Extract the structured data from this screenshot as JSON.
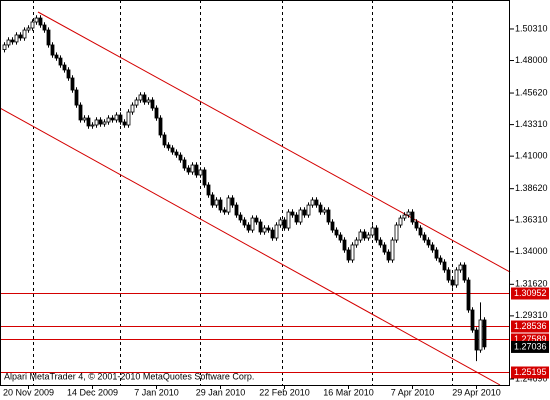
{
  "chart_data": {
    "type": "candlestick",
    "categories": [
      null,
      null,
      null,
      null,
      null,
      null,
      "20 Nov 2009",
      null,
      null,
      null,
      null,
      null,
      null,
      null,
      null,
      null,
      null,
      null,
      null,
      null,
      null,
      null,
      "14 Dec 2009",
      null,
      null,
      null,
      null,
      null,
      null,
      null,
      null,
      null,
      null,
      null,
      null,
      null,
      null,
      null,
      "7 Jan 2010",
      null,
      null,
      null,
      null,
      null,
      null,
      null,
      null,
      null,
      null,
      null,
      null,
      null,
      null,
      null,
      "29 Jan 2010",
      null,
      null,
      null,
      null,
      null,
      null,
      null,
      null,
      null,
      null,
      null,
      null,
      null,
      null,
      null,
      "22 Feb 2010",
      null,
      null,
      null,
      null,
      null,
      null,
      null,
      null,
      null,
      null,
      null,
      null,
      null,
      null,
      null,
      "16 Mar 2010",
      null,
      null,
      null,
      null,
      null,
      null,
      null,
      null,
      null,
      null,
      null,
      null,
      null,
      null,
      null,
      "7 Apr 2010",
      null,
      null,
      null,
      null,
      null,
      null,
      null,
      null,
      null,
      null,
      null,
      null,
      null,
      null,
      null,
      "29 Apr 2010",
      null,
      null
    ],
    "open": [
      1.488,
      1.4914,
      1.495,
      1.4936,
      1.4987,
      1.4965,
      1.5023,
      1.5038,
      1.5082,
      1.5111,
      1.506,
      1.5023,
      1.4914,
      1.484,
      1.4818,
      1.4767,
      1.4731,
      1.4672,
      1.4584,
      1.4474,
      1.4365,
      1.4379,
      1.4321,
      1.4328,
      1.4365,
      1.4335,
      1.435,
      1.4379,
      1.4365,
      1.4401,
      1.435,
      1.4328,
      1.4423,
      1.4474,
      1.4511,
      1.4548,
      1.4496,
      1.4511,
      1.4452,
      1.4379,
      1.4255,
      1.4182,
      1.416,
      1.413,
      1.4108,
      1.4072,
      1.4013,
      1.3984,
      1.4035,
      1.3962,
      1.3999,
      1.3889,
      1.3816,
      1.3742,
      1.3779,
      1.3706,
      1.3691,
      1.3794,
      1.3742,
      1.3669,
      1.3633,
      1.3596,
      1.3559,
      1.3647,
      1.3618,
      1.3545,
      1.3574,
      1.3559,
      1.3501,
      1.3596,
      1.3633,
      1.3574,
      1.3691,
      1.3669,
      1.3618,
      1.3706,
      1.3669,
      1.3742,
      1.3779,
      1.3742,
      1.3691,
      1.3706,
      1.3618,
      1.3559,
      1.3523,
      1.3486,
      1.3413,
      1.334,
      1.345,
      1.3486,
      1.3545,
      1.3501,
      1.3523,
      1.3574,
      1.3486,
      1.345,
      1.3398,
      1.334,
      1.3486,
      1.3596,
      1.3647,
      1.3669,
      1.3691,
      1.3618,
      1.3574,
      1.3523,
      1.3486,
      1.345,
      1.3413,
      1.3354,
      1.3325,
      1.3267,
      1.3193,
      1.3157,
      1.3267,
      1.3303,
      1.3193,
      1.2974,
      1.2827,
      1.2681,
      1.2901
    ],
    "high": [
      1.4934,
      1.497,
      1.497,
      1.5007,
      1.5007,
      1.5043,
      1.5058,
      1.5102,
      1.5131,
      1.5131,
      1.508,
      1.5043,
      1.4934,
      1.486,
      1.4838,
      1.4787,
      1.4751,
      1.4692,
      1.4604,
      1.4494,
      1.4399,
      1.4399,
      1.4348,
      1.4385,
      1.4385,
      1.437,
      1.4399,
      1.4399,
      1.4421,
      1.4421,
      1.437,
      1.4443,
      1.4494,
      1.4531,
      1.4568,
      1.4568,
      1.4531,
      1.4531,
      1.4472,
      1.4399,
      1.4275,
      1.4202,
      1.418,
      1.415,
      1.4128,
      1.4092,
      1.4033,
      1.4055,
      1.4055,
      1.4019,
      1.4019,
      1.3909,
      1.3836,
      1.3799,
      1.3799,
      1.3726,
      1.3814,
      1.3814,
      1.3762,
      1.3689,
      1.3653,
      1.3616,
      1.3667,
      1.3667,
      1.3638,
      1.3594,
      1.3594,
      1.3579,
      1.3616,
      1.3653,
      1.3653,
      1.3711,
      1.3711,
      1.3689,
      1.3726,
      1.3726,
      1.3762,
      1.3799,
      1.3799,
      1.3762,
      1.3726,
      1.3726,
      1.3638,
      1.3579,
      1.3543,
      1.3506,
      1.3433,
      1.347,
      1.3506,
      1.3565,
      1.3565,
      1.3543,
      1.3594,
      1.3594,
      1.3506,
      1.347,
      1.3418,
      1.3506,
      1.3616,
      1.3667,
      1.3689,
      1.3711,
      1.3711,
      1.3638,
      1.3594,
      1.3543,
      1.3506,
      1.347,
      1.3433,
      1.3374,
      1.3345,
      1.3287,
      1.3213,
      1.3287,
      1.3323,
      1.3323,
      1.3213,
      1.2994,
      1.2847,
      1.303,
      1.2921
    ],
    "low": [
      1.486,
      1.4894,
      1.4916,
      1.4916,
      1.4945,
      1.4945,
      1.5003,
      1.5018,
      1.5062,
      1.504,
      1.5003,
      1.4894,
      1.482,
      1.4798,
      1.4747,
      1.4711,
      1.4652,
      1.4564,
      1.4454,
      1.4345,
      1.4345,
      1.4301,
      1.4301,
      1.4308,
      1.4315,
      1.4315,
      1.433,
      1.4345,
      1.4345,
      1.433,
      1.4308,
      1.4308,
      1.4403,
      1.4454,
      1.4491,
      1.4476,
      1.4476,
      1.4432,
      1.4359,
      1.4235,
      1.4162,
      1.414,
      1.411,
      1.4088,
      1.4052,
      1.3993,
      1.3964,
      1.3964,
      1.3942,
      1.3942,
      1.3869,
      1.3796,
      1.3722,
      1.3722,
      1.3686,
      1.3671,
      1.3671,
      1.3722,
      1.3649,
      1.3613,
      1.3576,
      1.3539,
      1.3539,
      1.3598,
      1.3525,
      1.3525,
      1.3539,
      1.3481,
      1.3481,
      1.3576,
      1.3554,
      1.3554,
      1.3649,
      1.3598,
      1.3598,
      1.3649,
      1.3649,
      1.3722,
      1.3722,
      1.3671,
      1.3671,
      1.3598,
      1.3539,
      1.3503,
      1.3466,
      1.3393,
      1.332,
      1.332,
      1.343,
      1.3466,
      1.3481,
      1.3481,
      1.3503,
      1.3466,
      1.343,
      1.3378,
      1.332,
      1.332,
      1.3466,
      1.3576,
      1.3627,
      1.3649,
      1.3598,
      1.3554,
      1.3503,
      1.3466,
      1.343,
      1.3393,
      1.3334,
      1.3305,
      1.3247,
      1.3173,
      1.3137,
      1.3137,
      1.3247,
      1.3173,
      1.2954,
      1.2807,
      1.26,
      1.2661,
      1.2684
    ],
    "close": [
      1.4914,
      1.495,
      1.4936,
      1.4987,
      1.4965,
      1.5023,
      1.5038,
      1.5082,
      1.5111,
      1.506,
      1.5023,
      1.4914,
      1.484,
      1.4818,
      1.4767,
      1.4731,
      1.4672,
      1.4584,
      1.4474,
      1.4365,
      1.4379,
      1.4321,
      1.4328,
      1.4365,
      1.4335,
      1.435,
      1.4379,
      1.4365,
      1.4401,
      1.435,
      1.4328,
      1.4423,
      1.4474,
      1.4511,
      1.4548,
      1.4496,
      1.4511,
      1.4452,
      1.4379,
      1.4255,
      1.4182,
      1.416,
      1.413,
      1.4108,
      1.4072,
      1.4013,
      1.3984,
      1.4035,
      1.3962,
      1.3999,
      1.3889,
      1.3816,
      1.3742,
      1.3779,
      1.3706,
      1.3691,
      1.3794,
      1.3742,
      1.3669,
      1.3633,
      1.3596,
      1.3559,
      1.3647,
      1.3618,
      1.3545,
      1.3574,
      1.3559,
      1.3501,
      1.3596,
      1.3633,
      1.3574,
      1.3691,
      1.3669,
      1.3618,
      1.3706,
      1.3669,
      1.3742,
      1.3779,
      1.3742,
      1.3691,
      1.3706,
      1.3618,
      1.3559,
      1.3523,
      1.3486,
      1.3413,
      1.334,
      1.345,
      1.3486,
      1.3545,
      1.3501,
      1.3523,
      1.3574,
      1.3486,
      1.345,
      1.3398,
      1.334,
      1.3486,
      1.3596,
      1.3647,
      1.3669,
      1.3691,
      1.3618,
      1.3574,
      1.3523,
      1.3486,
      1.345,
      1.3413,
      1.3354,
      1.3325,
      1.3267,
      1.3193,
      1.3157,
      1.3267,
      1.3303,
      1.3193,
      1.2974,
      1.2827,
      1.2681,
      1.2901,
      1.2704
    ],
    "up_color": "#ffffff",
    "down_color": "#000000",
    "line_color": "#000000",
    "ylim": [
      1.2425,
      1.5243
    ],
    "yticks": [
      {
        "value": 1.5031,
        "label": "1.50310"
      },
      {
        "value": 1.48,
        "label": "1.48000"
      },
      {
        "value": 1.4562,
        "label": "1.45620"
      },
      {
        "value": 1.4331,
        "label": "1.43310"
      },
      {
        "value": 1.41,
        "label": "1.41000"
      },
      {
        "value": 1.3862,
        "label": "1.38620"
      },
      {
        "value": 1.3631,
        "label": "1.36310"
      },
      {
        "value": 1.34,
        "label": "1.34000"
      },
      {
        "value": 1.3162,
        "label": "1.31620"
      },
      {
        "value": 1.2931,
        "label": "1.29310"
      },
      {
        "value": 1.2469,
        "label": "1.24690"
      }
    ],
    "hlines": [
      1.30952,
      1.28536,
      1.27589,
      1.25195
    ],
    "hline_color": "#d40000",
    "bid": 1.27036,
    "bid_color": "#000000",
    "watermark": "Alpari MetaTrader 4, © 2001-2010 MetaQuotes Software Corp."
  }
}
